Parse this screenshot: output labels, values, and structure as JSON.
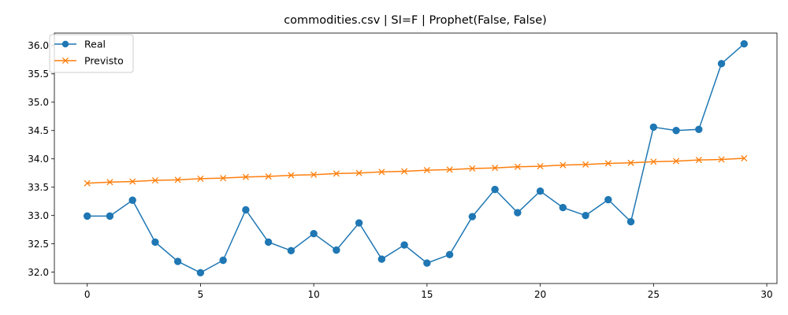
{
  "chart_data": {
    "type": "line",
    "title": "commodities.csv | SI=F | Prophet(False, False)",
    "xlabel": "",
    "ylabel": "",
    "x": [
      0,
      1,
      2,
      3,
      4,
      5,
      6,
      7,
      8,
      9,
      10,
      11,
      12,
      13,
      14,
      15,
      16,
      17,
      18,
      19,
      20,
      21,
      22,
      23,
      24,
      25,
      26,
      27,
      28,
      29
    ],
    "xlim": [
      -1.45,
      30.45
    ],
    "ylim": [
      31.8,
      36.22
    ],
    "xticks": [
      0,
      5,
      10,
      15,
      20,
      25,
      30
    ],
    "yticks": [
      32.0,
      32.5,
      33.0,
      33.5,
      34.0,
      34.5,
      35.0,
      35.5,
      36.0
    ],
    "yticks_labels": [
      "32.0",
      "32.5",
      "33.0",
      "33.5",
      "34.0",
      "34.5",
      "35.0",
      "35.5",
      "36.0"
    ],
    "grid": false,
    "legend_position": "top-left",
    "series": [
      {
        "name": "Real",
        "color": "#1f77b4",
        "marker": "circle",
        "values": [
          32.99,
          32.99,
          33.27,
          32.53,
          32.19,
          31.99,
          32.21,
          33.1,
          32.53,
          32.38,
          32.68,
          32.39,
          32.87,
          32.23,
          32.48,
          32.16,
          32.31,
          32.98,
          33.46,
          33.05,
          33.43,
          33.14,
          33.0,
          33.28,
          32.89,
          34.56,
          34.5,
          34.52,
          35.68,
          36.03
        ]
      },
      {
        "name": "Previsto",
        "color": "#ff7f0e",
        "marker": "x",
        "values": [
          33.57,
          33.59,
          33.6,
          33.62,
          33.63,
          33.65,
          33.66,
          33.68,
          33.69,
          33.71,
          33.72,
          33.74,
          33.75,
          33.77,
          33.78,
          33.8,
          33.81,
          33.83,
          33.84,
          33.86,
          33.87,
          33.89,
          33.9,
          33.92,
          33.93,
          33.95,
          33.96,
          33.98,
          33.99,
          34.01
        ]
      }
    ]
  }
}
